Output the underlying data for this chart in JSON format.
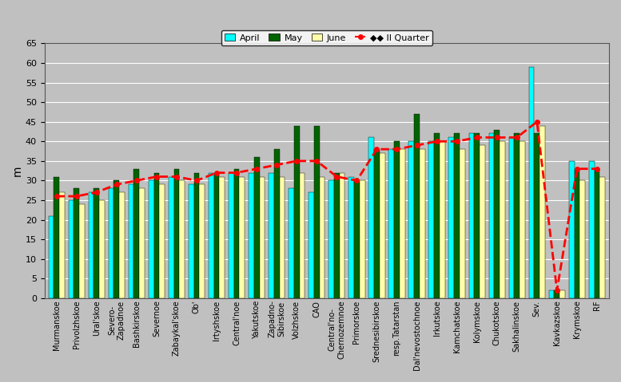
{
  "categories": [
    "Murmanskoe",
    "Privolzhskoe",
    "Ural'skoe",
    "Severo-\nZapadnoe",
    "Bashkirskoe",
    "Severnoe",
    "Zabaykal'skoe",
    "Ob'",
    "Irtyshskoe",
    "Central'noe",
    "Yakutskoe",
    "Zapadno-\nSibirskoe",
    "Volzhskoe",
    "CAO",
    "Central'no-\nChernozemnoe",
    "Primorskoe",
    "Srednesibirskoe",
    "resp.Tatarstan",
    "Dal'nevostochnoe",
    "Irkutskoe",
    "Kamchatskoe",
    "Kolymskoe",
    "Chukotskoe",
    "Sakhalinskoe",
    "Sev.",
    "Kavkazskoe",
    "Krymskoe",
    "RF"
  ],
  "april": [
    21,
    25,
    27,
    28,
    29,
    30,
    31,
    29,
    32,
    32,
    32,
    32,
    28,
    27,
    30,
    31,
    41,
    38,
    40,
    40,
    41,
    42,
    42,
    41,
    59,
    2,
    35,
    35
  ],
  "may": [
    31,
    28,
    28,
    30,
    33,
    32,
    33,
    32,
    32,
    33,
    36,
    38,
    44,
    44,
    32,
    30,
    38,
    40,
    47,
    42,
    42,
    42,
    43,
    42,
    42,
    2,
    33,
    33
  ],
  "june": [
    27,
    24,
    25,
    27,
    28,
    29,
    30,
    29,
    31,
    31,
    31,
    31,
    32,
    31,
    32,
    30,
    37,
    38,
    38,
    40,
    38,
    39,
    40,
    40,
    44,
    2,
    30,
    31
  ],
  "ii_quarter": [
    26,
    26,
    27,
    29,
    30,
    31,
    31,
    30,
    32,
    32,
    33,
    34,
    35,
    35,
    31,
    30,
    38,
    38,
    39,
    40,
    40,
    41,
    41,
    41,
    45,
    2,
    33,
    33
  ],
  "bar_colors": {
    "april": "#00FFFF",
    "may": "#006400",
    "june": "#FFFFAA"
  },
  "line_color": "#FF0000",
  "background_color": "#C0C0C0",
  "grid_color": "#FFFFFF",
  "ylabel": "m",
  "ylim": [
    0,
    65
  ],
  "yticks": [
    0,
    5,
    10,
    15,
    20,
    25,
    30,
    35,
    40,
    45,
    50,
    55,
    60,
    65
  ]
}
